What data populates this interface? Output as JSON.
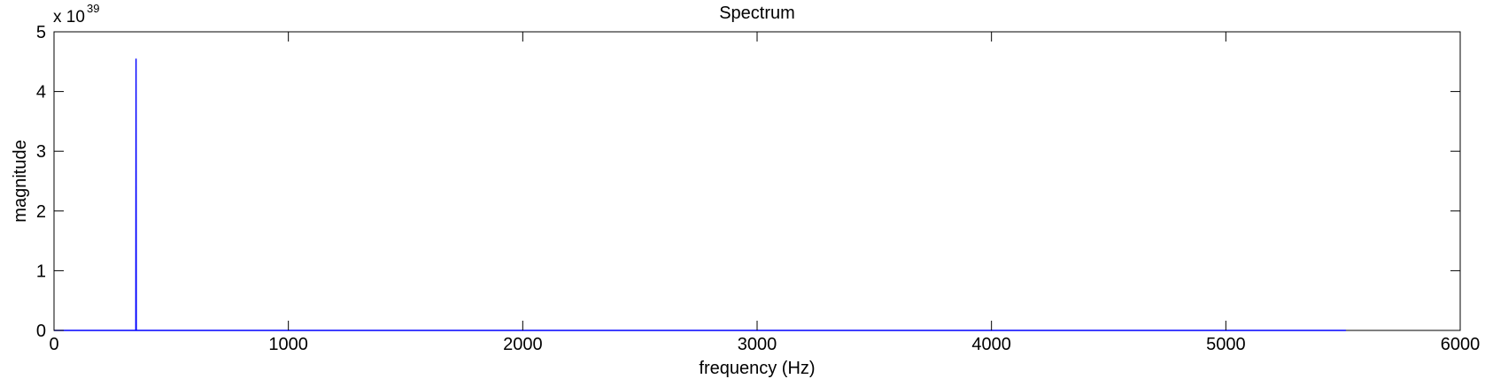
{
  "chart_data": {
    "type": "line",
    "title": "Spectrum",
    "xlabel": "frequency (Hz)",
    "ylabel": "magnitude",
    "y_exponent_label": {
      "base": "x 10",
      "exponent": "39"
    },
    "xlim": [
      0,
      6000
    ],
    "ylim": [
      0,
      5
    ],
    "x_ticks": [
      0,
      1000,
      2000,
      3000,
      4000,
      5000,
      6000
    ],
    "x_tick_labels": [
      "0",
      "1000",
      "2000",
      "3000",
      "4000",
      "5000",
      "6000"
    ],
    "y_ticks": [
      0,
      1,
      2,
      3,
      4,
      5
    ],
    "y_tick_labels": [
      "0",
      "1",
      "2",
      "3",
      "4",
      "5"
    ],
    "grid": false,
    "series": [
      {
        "color": "#0000ff",
        "x": [
          0,
          349,
          350,
          351,
          5512.5
        ],
        "y": [
          0,
          0,
          4.55,
          0,
          0
        ]
      }
    ]
  }
}
